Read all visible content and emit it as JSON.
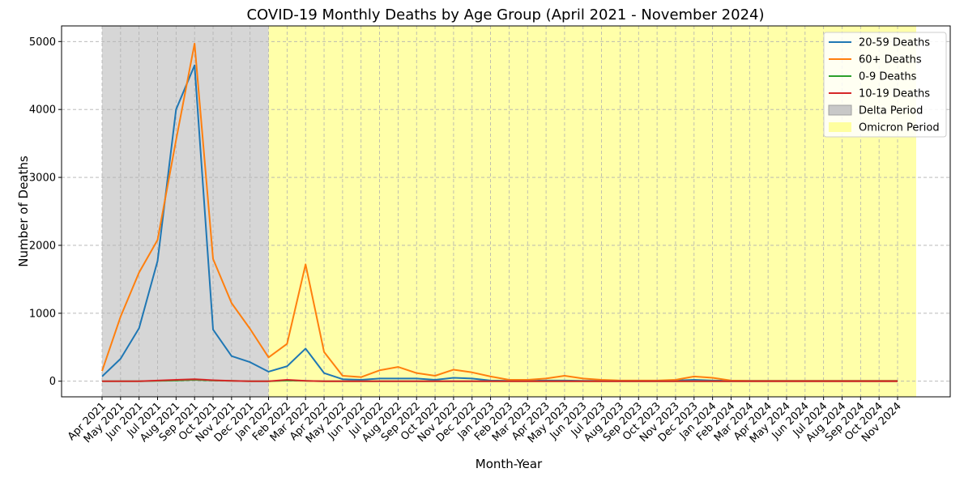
{
  "chart_data": {
    "type": "line",
    "title": "COVID-19 Monthly Deaths by Age Group (April 2021 - November 2024)",
    "xlabel": "Month-Year",
    "ylabel": "Number of Deaths",
    "ylim": [
      -230,
      5230
    ],
    "yticks": [
      0,
      1000,
      2000,
      3000,
      4000,
      5000
    ],
    "grid": true,
    "legend_position": "top-right",
    "categories": [
      "Apr 2021",
      "May 2021",
      "Jun 2021",
      "Jul 2021",
      "Aug 2021",
      "Sep 2021",
      "Oct 2021",
      "Nov 2021",
      "Dec 2021",
      "Jan 2022",
      "Feb 2022",
      "Mar 2022",
      "Apr 2022",
      "May 2022",
      "Jun 2022",
      "Jul 2022",
      "Aug 2022",
      "Sep 2022",
      "Oct 2022",
      "Nov 2022",
      "Dec 2022",
      "Jan 2023",
      "Feb 2023",
      "Mar 2023",
      "Apr 2023",
      "May 2023",
      "Jun 2023",
      "Jul 2023",
      "Aug 2023",
      "Sep 2023",
      "Oct 2023",
      "Nov 2023",
      "Dec 2023",
      "Jan 2024",
      "Feb 2024",
      "Mar 2024",
      "Apr 2024",
      "May 2024",
      "Jun 2024",
      "Jul 2024",
      "Aug 2024",
      "Sep 2024",
      "Oct 2024",
      "Nov 2024"
    ],
    "series": [
      {
        "name": "20-59 Deaths",
        "color": "#1f77b4",
        "values": [
          70,
          330,
          780,
          1770,
          4000,
          4650,
          760,
          370,
          280,
          140,
          220,
          480,
          120,
          30,
          20,
          40,
          40,
          40,
          20,
          50,
          40,
          10,
          5,
          5,
          10,
          10,
          5,
          5,
          5,
          5,
          5,
          10,
          20,
          10,
          5,
          5,
          5,
          5,
          5,
          5,
          5,
          5,
          5,
          5
        ]
      },
      {
        "name": "60+ Deaths",
        "color": "#ff7f0e",
        "values": [
          150,
          950,
          1600,
          2080,
          3550,
          4970,
          1800,
          1150,
          770,
          350,
          550,
          1720,
          430,
          80,
          60,
          160,
          210,
          120,
          80,
          170,
          130,
          70,
          20,
          20,
          40,
          80,
          40,
          20,
          10,
          10,
          10,
          20,
          70,
          50,
          10,
          5,
          5,
          5,
          5,
          5,
          5,
          5,
          5,
          5
        ]
      },
      {
        "name": "0-9 Deaths",
        "color": "#2ca02c",
        "values": [
          0,
          0,
          0,
          5,
          10,
          20,
          10,
          5,
          0,
          0,
          10,
          5,
          0,
          0,
          0,
          0,
          0,
          0,
          0,
          0,
          0,
          0,
          0,
          0,
          0,
          0,
          0,
          0,
          0,
          0,
          0,
          0,
          0,
          0,
          0,
          0,
          0,
          0,
          0,
          0,
          0,
          0,
          0,
          0
        ]
      },
      {
        "name": "10-19 Deaths",
        "color": "#d62728",
        "values": [
          0,
          0,
          0,
          10,
          20,
          30,
          15,
          5,
          0,
          0,
          20,
          5,
          0,
          0,
          0,
          0,
          0,
          0,
          0,
          0,
          0,
          0,
          0,
          0,
          0,
          0,
          0,
          0,
          0,
          0,
          0,
          0,
          0,
          0,
          0,
          0,
          0,
          0,
          0,
          0,
          0,
          0,
          0,
          0
        ]
      }
    ],
    "periods": [
      {
        "name": "Delta Period",
        "start": "Apr 2021",
        "end": "Jan 2022",
        "color": "#c8c8c8"
      },
      {
        "name": "Omicron Period",
        "start": "Jan 2022",
        "end": "Nov 2024",
        "color": "#ffffa0"
      }
    ]
  }
}
